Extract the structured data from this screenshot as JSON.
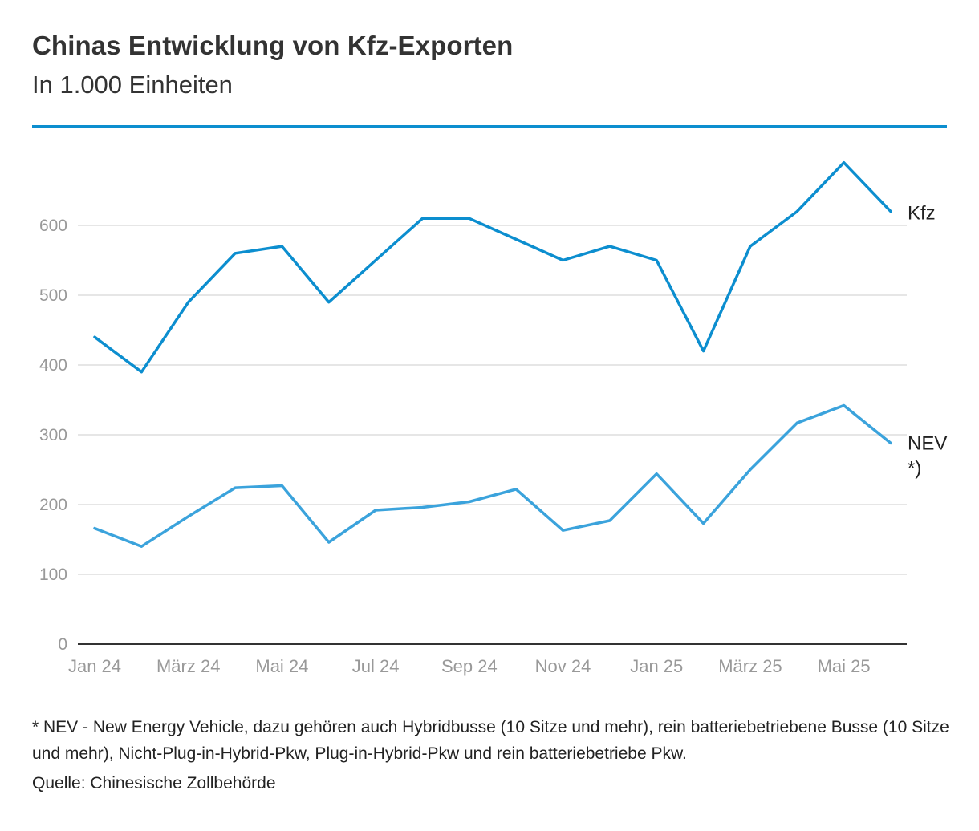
{
  "header": {
    "title": "Chinas Entwicklung von Kfz-Exporten",
    "subtitle": "In 1.000 Einheiten"
  },
  "footer": {
    "note": "* NEV - New Energy Vehicle, dazu gehören auch Hybridbusse (10 Sitze und mehr), rein batteriebetriebene Busse (10 Sitze und mehr), Nicht-Plug-in-Hybrid-Pkw, Plug-in-Hybrid-Pkw und rein batteriebetriebe Pkw.",
    "source": "Quelle: Chinesische Zollbehörde"
  },
  "colors": {
    "accent_rule": "#0c8ecf",
    "kfz": "#0c8ecf",
    "nev": "#3ba3dc",
    "grid": "#dddddd",
    "axis": "#333333",
    "tick_text": "#999999"
  },
  "chart_data": {
    "type": "line",
    "title": "Chinas Entwicklung von Kfz-Exporten",
    "subtitle": "In 1.000 Einheiten",
    "x": [
      "Jan 24",
      "Feb 24",
      "März 24",
      "Apr 24",
      "Mai 24",
      "Jun 24",
      "Jul 24",
      "Aug 24",
      "Sep 24",
      "Okt 24",
      "Nov 24",
      "Dez 24",
      "Jan 25",
      "Feb 25",
      "März 25",
      "Apr 25",
      "Mai 25",
      "Jun 25"
    ],
    "x_tick_labels": [
      "Jan 24",
      "März 24",
      "Mai 24",
      "Jul 24",
      "Sep 24",
      "Nov 24",
      "Jan 25",
      "März 25",
      "Mai 25"
    ],
    "x_tick_index": [
      0,
      2,
      4,
      6,
      8,
      10,
      12,
      14,
      16
    ],
    "y_ticks": [
      0,
      100,
      200,
      300,
      400,
      500,
      600
    ],
    "ylim": [
      0,
      700
    ],
    "grid": true,
    "legend": "end-of-line labels",
    "series": [
      {
        "name": "Kfz",
        "label_lines": [
          "Kfz"
        ],
        "values": [
          440,
          390,
          490,
          560,
          570,
          490,
          550,
          610,
          610,
          580,
          550,
          570,
          550,
          420,
          570,
          620,
          690,
          620
        ]
      },
      {
        "name": "NEV *)",
        "label_lines": [
          "NEV",
          "*)"
        ],
        "values": [
          166,
          140,
          183,
          224,
          227,
          146,
          192,
          196,
          204,
          222,
          163,
          177,
          244,
          173,
          250,
          317,
          342,
          288
        ]
      }
    ]
  }
}
